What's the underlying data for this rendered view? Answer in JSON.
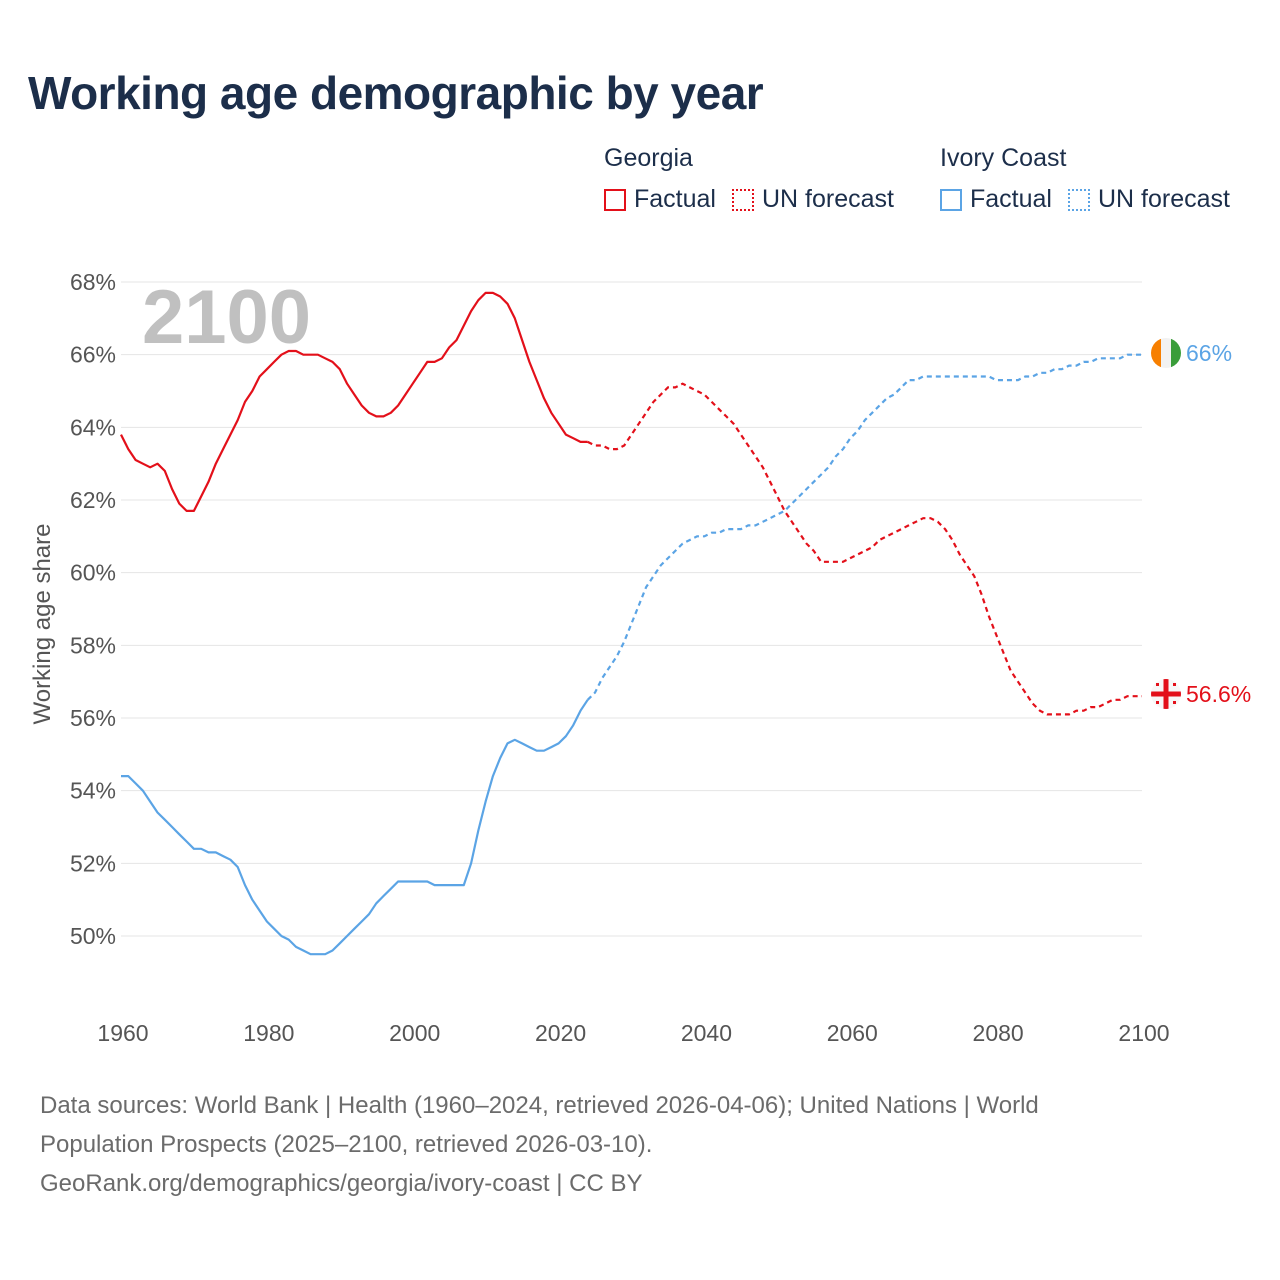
{
  "title": "Working age demographic by year",
  "legend": {
    "groups": [
      {
        "name": "Georgia",
        "factual": "Factual",
        "forecast": "UN forecast",
        "color": "#e3101a"
      },
      {
        "name": "Ivory Coast",
        "factual": "Factual",
        "forecast": "UN forecast",
        "color": "#5ba4e5"
      }
    ]
  },
  "year_watermark": "2100",
  "source": {
    "line1": "Data sources: World Bank | Health (1960–2024, retrieved 2026-04-06); United Nations | World",
    "line2": "Population Prospects (2025–2100, retrieved 2026-03-10).",
    "line3": "GeoRank.org/demographics/georgia/ivory-coast | CC BY"
  },
  "chart_data": {
    "type": "line",
    "title": "Working age demographic by year",
    "xlabel": "",
    "ylabel": "Working age share",
    "xlim": [
      1960,
      2100
    ],
    "ylim": [
      48,
      68
    ],
    "x_ticks": [
      "1960",
      "1980",
      "2000",
      "2020",
      "2040",
      "2060",
      "2080",
      "2100"
    ],
    "y_ticks": [
      "50%",
      "52%",
      "54%",
      "56%",
      "58%",
      "60%",
      "62%",
      "64%",
      "66%",
      "68%"
    ],
    "grid": true,
    "forecast_start": 2024,
    "series": [
      {
        "name": "Georgia",
        "color": "#e3101a",
        "end_label": "56.6%",
        "points": [
          [
            1960,
            63.8
          ],
          [
            1961,
            63.4
          ],
          [
            1962,
            63.1
          ],
          [
            1963,
            63.0
          ],
          [
            1964,
            62.9
          ],
          [
            1965,
            63.0
          ],
          [
            1966,
            62.8
          ],
          [
            1967,
            62.3
          ],
          [
            1968,
            61.9
          ],
          [
            1969,
            61.7
          ],
          [
            1970,
            61.7
          ],
          [
            1971,
            62.1
          ],
          [
            1972,
            62.5
          ],
          [
            1973,
            63.0
          ],
          [
            1974,
            63.4
          ],
          [
            1975,
            63.8
          ],
          [
            1976,
            64.2
          ],
          [
            1977,
            64.7
          ],
          [
            1978,
            65.0
          ],
          [
            1979,
            65.4
          ],
          [
            1980,
            65.6
          ],
          [
            1981,
            65.8
          ],
          [
            1982,
            66.0
          ],
          [
            1983,
            66.1
          ],
          [
            1984,
            66.1
          ],
          [
            1985,
            66.0
          ],
          [
            1986,
            66.0
          ],
          [
            1987,
            66.0
          ],
          [
            1988,
            65.9
          ],
          [
            1989,
            65.8
          ],
          [
            1990,
            65.6
          ],
          [
            1991,
            65.2
          ],
          [
            1992,
            64.9
          ],
          [
            1993,
            64.6
          ],
          [
            1994,
            64.4
          ],
          [
            1995,
            64.3
          ],
          [
            1996,
            64.3
          ],
          [
            1997,
            64.4
          ],
          [
            1998,
            64.6
          ],
          [
            1999,
            64.9
          ],
          [
            2000,
            65.2
          ],
          [
            2001,
            65.5
          ],
          [
            2002,
            65.8
          ],
          [
            2003,
            65.8
          ],
          [
            2004,
            65.9
          ],
          [
            2005,
            66.2
          ],
          [
            2006,
            66.4
          ],
          [
            2007,
            66.8
          ],
          [
            2008,
            67.2
          ],
          [
            2009,
            67.5
          ],
          [
            2010,
            67.7
          ],
          [
            2011,
            67.7
          ],
          [
            2012,
            67.6
          ],
          [
            2013,
            67.4
          ],
          [
            2014,
            67.0
          ],
          [
            2015,
            66.4
          ],
          [
            2016,
            65.8
          ],
          [
            2017,
            65.3
          ],
          [
            2018,
            64.8
          ],
          [
            2019,
            64.4
          ],
          [
            2020,
            64.1
          ],
          [
            2021,
            63.8
          ],
          [
            2022,
            63.7
          ],
          [
            2023,
            63.6
          ],
          [
            2024,
            63.6
          ],
          [
            2025,
            63.5
          ],
          [
            2026,
            63.5
          ],
          [
            2027,
            63.4
          ],
          [
            2028,
            63.4
          ],
          [
            2029,
            63.5
          ],
          [
            2030,
            63.8
          ],
          [
            2031,
            64.1
          ],
          [
            2032,
            64.4
          ],
          [
            2033,
            64.7
          ],
          [
            2034,
            64.9
          ],
          [
            2035,
            65.1
          ],
          [
            2036,
            65.1
          ],
          [
            2037,
            65.2
          ],
          [
            2038,
            65.1
          ],
          [
            2039,
            65.0
          ],
          [
            2040,
            64.9
          ],
          [
            2041,
            64.7
          ],
          [
            2042,
            64.5
          ],
          [
            2043,
            64.3
          ],
          [
            2044,
            64.1
          ],
          [
            2045,
            63.8
          ],
          [
            2046,
            63.5
          ],
          [
            2047,
            63.2
          ],
          [
            2048,
            62.9
          ],
          [
            2049,
            62.5
          ],
          [
            2050,
            62.1
          ],
          [
            2051,
            61.7
          ],
          [
            2052,
            61.4
          ],
          [
            2053,
            61.1
          ],
          [
            2054,
            60.8
          ],
          [
            2055,
            60.6
          ],
          [
            2056,
            60.3
          ],
          [
            2057,
            60.3
          ],
          [
            2058,
            60.3
          ],
          [
            2059,
            60.3
          ],
          [
            2060,
            60.4
          ],
          [
            2061,
            60.5
          ],
          [
            2062,
            60.6
          ],
          [
            2063,
            60.7
          ],
          [
            2064,
            60.9
          ],
          [
            2065,
            61.0
          ],
          [
            2066,
            61.1
          ],
          [
            2067,
            61.2
          ],
          [
            2068,
            61.3
          ],
          [
            2069,
            61.4
          ],
          [
            2070,
            61.5
          ],
          [
            2071,
            61.5
          ],
          [
            2072,
            61.4
          ],
          [
            2073,
            61.2
          ],
          [
            2074,
            60.9
          ],
          [
            2075,
            60.5
          ],
          [
            2076,
            60.2
          ],
          [
            2077,
            59.9
          ],
          [
            2078,
            59.4
          ],
          [
            2079,
            58.8
          ],
          [
            2080,
            58.3
          ],
          [
            2081,
            57.8
          ],
          [
            2082,
            57.3
          ],
          [
            2083,
            57.0
          ],
          [
            2084,
            56.7
          ],
          [
            2085,
            56.4
          ],
          [
            2086,
            56.2
          ],
          [
            2087,
            56.1
          ],
          [
            2088,
            56.1
          ],
          [
            2089,
            56.1
          ],
          [
            2090,
            56.1
          ],
          [
            2091,
            56.2
          ],
          [
            2092,
            56.2
          ],
          [
            2093,
            56.3
          ],
          [
            2094,
            56.3
          ],
          [
            2095,
            56.4
          ],
          [
            2096,
            56.5
          ],
          [
            2097,
            56.5
          ],
          [
            2098,
            56.6
          ],
          [
            2099,
            56.6
          ],
          [
            2100,
            56.6
          ]
        ]
      },
      {
        "name": "Ivory Coast",
        "color": "#5ba4e5",
        "end_label": "66%",
        "points": [
          [
            1960,
            54.4
          ],
          [
            1961,
            54.4
          ],
          [
            1962,
            54.2
          ],
          [
            1963,
            54.0
          ],
          [
            1964,
            53.7
          ],
          [
            1965,
            53.4
          ],
          [
            1966,
            53.2
          ],
          [
            1967,
            53.0
          ],
          [
            1968,
            52.8
          ],
          [
            1969,
            52.6
          ],
          [
            1970,
            52.4
          ],
          [
            1971,
            52.4
          ],
          [
            1972,
            52.3
          ],
          [
            1973,
            52.3
          ],
          [
            1974,
            52.2
          ],
          [
            1975,
            52.1
          ],
          [
            1976,
            51.9
          ],
          [
            1977,
            51.4
          ],
          [
            1978,
            51.0
          ],
          [
            1979,
            50.7
          ],
          [
            1980,
            50.4
          ],
          [
            1981,
            50.2
          ],
          [
            1982,
            50.0
          ],
          [
            1983,
            49.9
          ],
          [
            1984,
            49.7
          ],
          [
            1985,
            49.6
          ],
          [
            1986,
            49.5
          ],
          [
            1987,
            49.5
          ],
          [
            1988,
            49.5
          ],
          [
            1989,
            49.6
          ],
          [
            1990,
            49.8
          ],
          [
            1991,
            50.0
          ],
          [
            1992,
            50.2
          ],
          [
            1993,
            50.4
          ],
          [
            1994,
            50.6
          ],
          [
            1995,
            50.9
          ],
          [
            1996,
            51.1
          ],
          [
            1997,
            51.3
          ],
          [
            1998,
            51.5
          ],
          [
            1999,
            51.5
          ],
          [
            2000,
            51.5
          ],
          [
            2001,
            51.5
          ],
          [
            2002,
            51.5
          ],
          [
            2003,
            51.4
          ],
          [
            2004,
            51.4
          ],
          [
            2005,
            51.4
          ],
          [
            2006,
            51.4
          ],
          [
            2007,
            51.4
          ],
          [
            2008,
            52.0
          ],
          [
            2009,
            52.9
          ],
          [
            2010,
            53.7
          ],
          [
            2011,
            54.4
          ],
          [
            2012,
            54.9
          ],
          [
            2013,
            55.3
          ],
          [
            2014,
            55.4
          ],
          [
            2015,
            55.3
          ],
          [
            2016,
            55.2
          ],
          [
            2017,
            55.1
          ],
          [
            2018,
            55.1
          ],
          [
            2019,
            55.2
          ],
          [
            2020,
            55.3
          ],
          [
            2021,
            55.5
          ],
          [
            2022,
            55.8
          ],
          [
            2023,
            56.2
          ],
          [
            2024,
            56.5
          ],
          [
            2025,
            56.7
          ],
          [
            2026,
            57.1
          ],
          [
            2027,
            57.4
          ],
          [
            2028,
            57.7
          ],
          [
            2029,
            58.1
          ],
          [
            2030,
            58.6
          ],
          [
            2031,
            59.1
          ],
          [
            2032,
            59.6
          ],
          [
            2033,
            59.9
          ],
          [
            2034,
            60.2
          ],
          [
            2035,
            60.4
          ],
          [
            2036,
            60.6
          ],
          [
            2037,
            60.8
          ],
          [
            2038,
            60.9
          ],
          [
            2039,
            61.0
          ],
          [
            2040,
            61.0
          ],
          [
            2041,
            61.1
          ],
          [
            2042,
            61.1
          ],
          [
            2043,
            61.2
          ],
          [
            2044,
            61.2
          ],
          [
            2045,
            61.2
          ],
          [
            2046,
            61.3
          ],
          [
            2047,
            61.3
          ],
          [
            2048,
            61.4
          ],
          [
            2049,
            61.5
          ],
          [
            2050,
            61.6
          ],
          [
            2051,
            61.7
          ],
          [
            2052,
            61.9
          ],
          [
            2053,
            62.1
          ],
          [
            2054,
            62.3
          ],
          [
            2055,
            62.5
          ],
          [
            2056,
            62.7
          ],
          [
            2057,
            62.9
          ],
          [
            2058,
            63.2
          ],
          [
            2059,
            63.4
          ],
          [
            2060,
            63.7
          ],
          [
            2061,
            63.9
          ],
          [
            2062,
            64.2
          ],
          [
            2063,
            64.4
          ],
          [
            2064,
            64.6
          ],
          [
            2065,
            64.8
          ],
          [
            2066,
            64.9
          ],
          [
            2067,
            65.1
          ],
          [
            2068,
            65.3
          ],
          [
            2069,
            65.3
          ],
          [
            2070,
            65.4
          ],
          [
            2071,
            65.4
          ],
          [
            2072,
            65.4
          ],
          [
            2073,
            65.4
          ],
          [
            2074,
            65.4
          ],
          [
            2075,
            65.4
          ],
          [
            2076,
            65.4
          ],
          [
            2077,
            65.4
          ],
          [
            2078,
            65.4
          ],
          [
            2079,
            65.4
          ],
          [
            2080,
            65.3
          ],
          [
            2081,
            65.3
          ],
          [
            2082,
            65.3
          ],
          [
            2083,
            65.3
          ],
          [
            2084,
            65.4
          ],
          [
            2085,
            65.4
          ],
          [
            2086,
            65.5
          ],
          [
            2087,
            65.5
          ],
          [
            2088,
            65.6
          ],
          [
            2089,
            65.6
          ],
          [
            2090,
            65.7
          ],
          [
            2091,
            65.7
          ],
          [
            2092,
            65.8
          ],
          [
            2093,
            65.8
          ],
          [
            2094,
            65.9
          ],
          [
            2095,
            65.9
          ],
          [
            2096,
            65.9
          ],
          [
            2097,
            65.9
          ],
          [
            2098,
            66.0
          ],
          [
            2099,
            66.0
          ],
          [
            2100,
            66.0
          ]
        ]
      }
    ]
  }
}
